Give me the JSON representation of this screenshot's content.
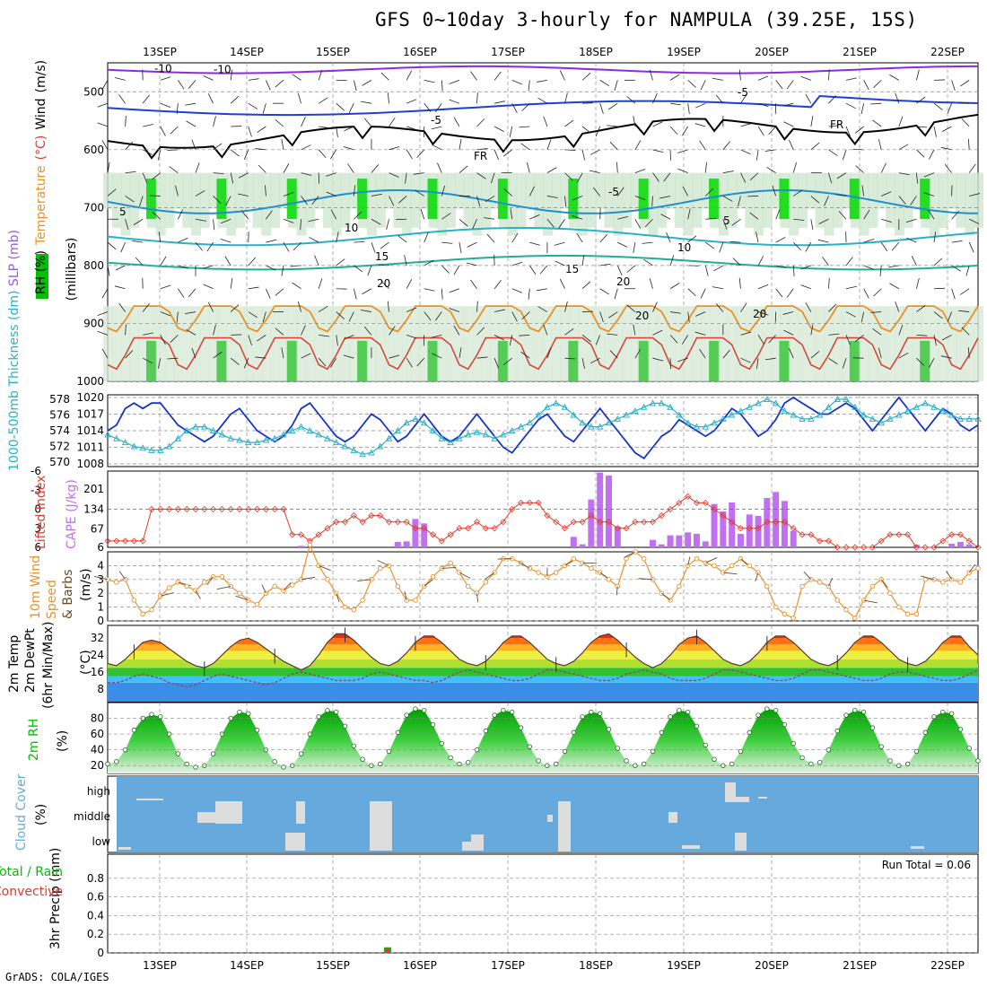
{
  "title": "GFS 0~10day 3-hourly for NAMPULA (39.25E, 15S)",
  "footer": "GrADS: COLA/IGES",
  "run_total": "Run Total = 0.06",
  "colors": {
    "purple": "#8a2be2",
    "blue": "#1f3fd4",
    "cyan": "#2ab0c8",
    "orange": "#e8922a",
    "green": "#00c000",
    "red": "#e03a2a",
    "sky": "#66aadd"
  },
  "chart_data": [
    {
      "type": "contour",
      "id": "upper-air",
      "ylabel_parts": [
        "RH (%)",
        "Temperature",
        "(°C)",
        "Wind",
        "(m/s)"
      ],
      "ylabel2": "(millibars)",
      "x_ticks": [
        "13SEP",
        "14SEP",
        "15SEP",
        "16SEP",
        "17SEP",
        "18SEP",
        "19SEP",
        "20SEP",
        "21SEP",
        "22SEP"
      ],
      "y_ticks": [
        500,
        600,
        700,
        800,
        900,
        1000
      ],
      "ylim": [
        450,
        1000
      ],
      "contour_labels": [
        "-10",
        "-10",
        "-5",
        "-5",
        "FR",
        "FR",
        "5",
        "-5",
        "5",
        "10",
        "10",
        "15",
        "15",
        "20",
        "20",
        "20",
        "20"
      ]
    },
    {
      "type": "line",
      "id": "slp-thickness",
      "ylabel_parts": [
        "1000-500mb",
        "Thickness (dm)",
        "SLP (mb)"
      ],
      "left_ticks": [
        570,
        572,
        574,
        576,
        578
      ],
      "right_ticks": [
        1008,
        1011,
        1014,
        1017,
        1020
      ],
      "series": [
        {
          "name": "SLP (mb)",
          "values": [
            1014,
            1015,
            1018,
            1019,
            1018,
            1019,
            1019,
            1017,
            1015,
            1014,
            1013,
            1012,
            1013,
            1015,
            1017,
            1018,
            1016,
            1014,
            1013,
            1012,
            1013,
            1015,
            1018,
            1019,
            1017,
            1015,
            1013,
            1012,
            1013,
            1015,
            1017,
            1016,
            1014,
            1012,
            1013,
            1015,
            1017,
            1015,
            1013,
            1012,
            1013,
            1015,
            1017,
            1015,
            1013,
            1011,
            1010,
            1012,
            1014,
            1016,
            1017,
            1015,
            1013,
            1012,
            1014,
            1016,
            1018,
            1016,
            1014,
            1012,
            1010,
            1009,
            1011,
            1013,
            1014,
            1016,
            1015,
            1014,
            1013,
            1014,
            1016,
            1018,
            1017,
            1015,
            1013,
            1014,
            1016,
            1019,
            1020,
            1019,
            1018,
            1017,
            1017,
            1018,
            1019,
            1018,
            1016,
            1014,
            1016,
            1018,
            1020,
            1018,
            1016,
            1014,
            1016,
            1018,
            1017,
            1015,
            1014,
            1015
          ]
        },
        {
          "name": "1000-500mb Thickness (dm)",
          "values": [
            573.5,
            573,
            572.5,
            572,
            571.8,
            571.5,
            571.5,
            572,
            573,
            574,
            574.5,
            574.5,
            574,
            573.5,
            573,
            572.8,
            572.5,
            572.5,
            572.8,
            573,
            573.5,
            574,
            574.5,
            574,
            573.5,
            573,
            572.5,
            572,
            571.5,
            571,
            571.2,
            572,
            573,
            574,
            575,
            575.5,
            575,
            574,
            573,
            572.5,
            573,
            573.5,
            573.8,
            573.5,
            573,
            573.5,
            574,
            574.5,
            575,
            576,
            577,
            577.5,
            577,
            576,
            575,
            574.5,
            574.5,
            575,
            575.5,
            576,
            576.5,
            577,
            577.5,
            577.5,
            577,
            576,
            575,
            574.5,
            574.5,
            575,
            575.5,
            576,
            576.5,
            577,
            577.5,
            578,
            577.5,
            576.5,
            576,
            575.5,
            575.5,
            576,
            577,
            578,
            578,
            577,
            576,
            575.5,
            575,
            575.5,
            576,
            576.5,
            577,
            577.5,
            577,
            576.5,
            576,
            575.5,
            575.5,
            575.5
          ]
        }
      ]
    },
    {
      "type": "bar",
      "id": "cape-li",
      "ylabel_parts": [
        "Lifted Index",
        "CAPE (J/kg)"
      ],
      "li_ticks": [
        -6,
        -3,
        0,
        3,
        6
      ],
      "cape_ticks": [
        6,
        67,
        134,
        201
      ],
      "bars": [
        0,
        0,
        0,
        0,
        0,
        0,
        0,
        0,
        0,
        0,
        0,
        0,
        0,
        0,
        0,
        0,
        0,
        0,
        0,
        0,
        0,
        0,
        0,
        0,
        0,
        0,
        0,
        0,
        0,
        0,
        0,
        0,
        0,
        0,
        0,
        0,
        0,
        0,
        0,
        0,
        0,
        0,
        0,
        0,
        0,
        0,
        0,
        0,
        0,
        0,
        0,
        0,
        0,
        0,
        0,
        0,
        0,
        0,
        0,
        0,
        0,
        0,
        0,
        0,
        0,
        0,
        0,
        0,
        0,
        0,
        0,
        0,
        0,
        0,
        0,
        0,
        0,
        0,
        0,
        0,
        0,
        0,
        0,
        0,
        0,
        0,
        0,
        0,
        0,
        0,
        0,
        0,
        0,
        0,
        0,
        0,
        0,
        0,
        0,
        0
      ],
      "cape_values": [
        0,
        0,
        0,
        0,
        0,
        0,
        0,
        0,
        0,
        0,
        0,
        0,
        0,
        0,
        0,
        0,
        0,
        0,
        0,
        0,
        0,
        0,
        5,
        0,
        0,
        0,
        0,
        0,
        0,
        0,
        0,
        0,
        0,
        18,
        20,
        95,
        80,
        0,
        0,
        0,
        0,
        0,
        0,
        0,
        0,
        0,
        0,
        0,
        0,
        0,
        0,
        0,
        0,
        35,
        10,
        160,
        250,
        240,
        70,
        0,
        0,
        0,
        25,
        10,
        40,
        40,
        50,
        45,
        20,
        145,
        120,
        150,
        45,
        110,
        105,
        165,
        185,
        155,
        55,
        0,
        0,
        0,
        0,
        0,
        0,
        0,
        0,
        0,
        0,
        0,
        0,
        0,
        8,
        0,
        0,
        0,
        12,
        18,
        10,
        0
      ],
      "li_values": [
        5,
        5,
        5,
        5,
        5,
        0,
        0,
        0,
        0,
        0,
        0,
        0,
        0,
        0,
        0,
        0,
        0,
        0,
        0,
        0,
        0,
        4,
        4,
        5,
        4,
        3,
        2,
        2,
        1,
        2,
        1,
        1,
        2,
        2,
        2,
        3,
        3,
        4,
        5,
        4,
        3,
        3,
        2,
        3,
        3,
        2,
        0,
        -1,
        -1,
        -1,
        1,
        2,
        3,
        2,
        2,
        1,
        2,
        2,
        3,
        3,
        2,
        2,
        2,
        1,
        0,
        -1,
        -2,
        -1,
        -1,
        0,
        1,
        2,
        3,
        3,
        3,
        2,
        2,
        2,
        3,
        4,
        4,
        5,
        5,
        6,
        6,
        6,
        6,
        6,
        5,
        4,
        4,
        4,
        6,
        6,
        6,
        5,
        4,
        4,
        5,
        6
      ]
    },
    {
      "type": "line",
      "id": "wind10m",
      "ylabel_parts": [
        "10m Wind",
        "Speed",
        "& Barbs",
        "(m/s)"
      ],
      "y_ticks": [
        0,
        1,
        2,
        3,
        4
      ],
      "ylim": [
        0,
        5
      ],
      "values": [
        3,
        2.8,
        3,
        1.5,
        0.5,
        0.8,
        1.8,
        2.4,
        2.8,
        2.5,
        2.2,
        2.8,
        3.2,
        3.2,
        2.5,
        2.0,
        1.5,
        1.2,
        2.0,
        2.5,
        2.2,
        2.6,
        3.0,
        5.5,
        4.0,
        3.0,
        2.0,
        1.0,
        0.8,
        1.5,
        3.0,
        3.8,
        4.0,
        2.5,
        1.5,
        1.5,
        2.5,
        3.2,
        3.8,
        4.2,
        3.5,
        2.5,
        2.0,
        2.8,
        3.5,
        4.5,
        4.5,
        4.2,
        3.8,
        3.5,
        3.2,
        3.5,
        4.0,
        4.5,
        4.2,
        3.8,
        3.5,
        3.0,
        2.5,
        4.5,
        5.0,
        4.5,
        3.0,
        2.0,
        1.5,
        2.5,
        4.0,
        4.5,
        4.2,
        4.0,
        3.5,
        4.0,
        4.5,
        4.0,
        3.5,
        2.5,
        1.0,
        0.5,
        0.2,
        2.5,
        3.0,
        2.8,
        2.5,
        1.5,
        0.8,
        0.2,
        1.5,
        2.5,
        3.0,
        2.0,
        1.0,
        0.5,
        0.5,
        3.0,
        3.0,
        2.8,
        3.0,
        2.8,
        3.5,
        3.8
      ]
    },
    {
      "type": "area",
      "id": "temp2m",
      "ylabel_parts": [
        "2m Temp",
        "2m DewPt",
        "(6hr Min/Max)",
        "(°C)"
      ],
      "y_ticks": [
        8,
        16,
        24,
        32
      ],
      "ylim": [
        2,
        38
      ],
      "temp": [
        20,
        19,
        22,
        26,
        30,
        31,
        30,
        27,
        24,
        21,
        19,
        18,
        20,
        24,
        28,
        31,
        32,
        30,
        27,
        24,
        21,
        19,
        17,
        19,
        24,
        30,
        34,
        34,
        31,
        27,
        23,
        20,
        19,
        21,
        25,
        30,
        33,
        33,
        30,
        26,
        22,
        20,
        19,
        21,
        25,
        30,
        33,
        33,
        30,
        26,
        22,
        20,
        19,
        21,
        25,
        30,
        33,
        34,
        31,
        27,
        23,
        20,
        18,
        20,
        24,
        29,
        32,
        33,
        30,
        26,
        22,
        20,
        19,
        21,
        25,
        30,
        33,
        33,
        30,
        26,
        22,
        20,
        19,
        21,
        25,
        30,
        33,
        33,
        30,
        26,
        22,
        20,
        19,
        21,
        25,
        30,
        33,
        33,
        28,
        24
      ],
      "dewpoint": [
        11,
        11,
        12,
        14,
        15,
        14,
        13,
        11,
        10,
        9,
        10,
        12,
        14,
        15,
        14,
        13,
        12,
        11,
        10,
        11,
        13,
        15,
        16,
        15,
        14,
        13,
        12,
        12,
        12,
        13,
        15,
        16,
        15,
        14,
        13,
        12,
        12,
        11,
        12,
        14,
        16,
        17,
        16,
        15,
        14,
        13,
        12,
        12,
        13,
        15,
        17,
        17,
        16,
        15,
        14,
        13,
        12,
        12,
        13,
        15,
        16,
        17,
        16,
        15,
        13,
        12,
        12,
        12,
        13,
        15,
        17,
        17,
        16,
        15,
        14,
        13,
        12,
        12,
        13,
        15,
        17,
        17,
        16,
        15,
        14,
        13,
        12,
        12,
        13,
        15,
        16,
        16,
        15,
        14,
        13,
        12,
        12,
        13,
        15,
        17
      ]
    },
    {
      "type": "area",
      "id": "rh2m",
      "ylabel_parts": [
        "2m RH",
        "(%)"
      ],
      "y_ticks": [
        20,
        40,
        60,
        80
      ],
      "ylim": [
        10,
        100
      ],
      "values": [
        22,
        25,
        40,
        65,
        80,
        85,
        82,
        60,
        35,
        22,
        18,
        20,
        35,
        60,
        80,
        88,
        86,
        65,
        40,
        25,
        18,
        20,
        35,
        60,
        82,
        90,
        88,
        70,
        45,
        28,
        20,
        22,
        38,
        62,
        84,
        92,
        90,
        72,
        48,
        30,
        22,
        24,
        40,
        64,
        84,
        90,
        88,
        68,
        44,
        26,
        20,
        22,
        38,
        62,
        82,
        88,
        86,
        66,
        42,
        26,
        20,
        22,
        38,
        62,
        82,
        90,
        88,
        70,
        46,
        28,
        20,
        22,
        38,
        62,
        84,
        92,
        90,
        72,
        48,
        30,
        22,
        24,
        40,
        64,
        84,
        90,
        88,
        68,
        44,
        26,
        20,
        22,
        38,
        62,
        82,
        88,
        86,
        66,
        42,
        26
      ]
    },
    {
      "type": "heatmap",
      "id": "cloud",
      "ylabel_parts": [
        "Cloud Cover",
        "(%)"
      ],
      "y_ticks": [
        "high",
        "middle",
        "low"
      ]
    },
    {
      "type": "bar",
      "id": "precip",
      "ylabel_parts": [
        "3hr Precip (mm)",
        "Total / Rain",
        "Convective"
      ],
      "y_ticks": [
        0,
        0.2,
        0.4,
        0.6,
        0.8
      ],
      "ylim": [
        0,
        1.0
      ],
      "x_ticks": [
        "13SEP",
        "14SEP",
        "15SEP",
        "16SEP",
        "17SEP",
        "18SEP",
        "19SEP",
        "20SEP",
        "21SEP",
        "22SEP"
      ],
      "total": 0.06
    }
  ]
}
